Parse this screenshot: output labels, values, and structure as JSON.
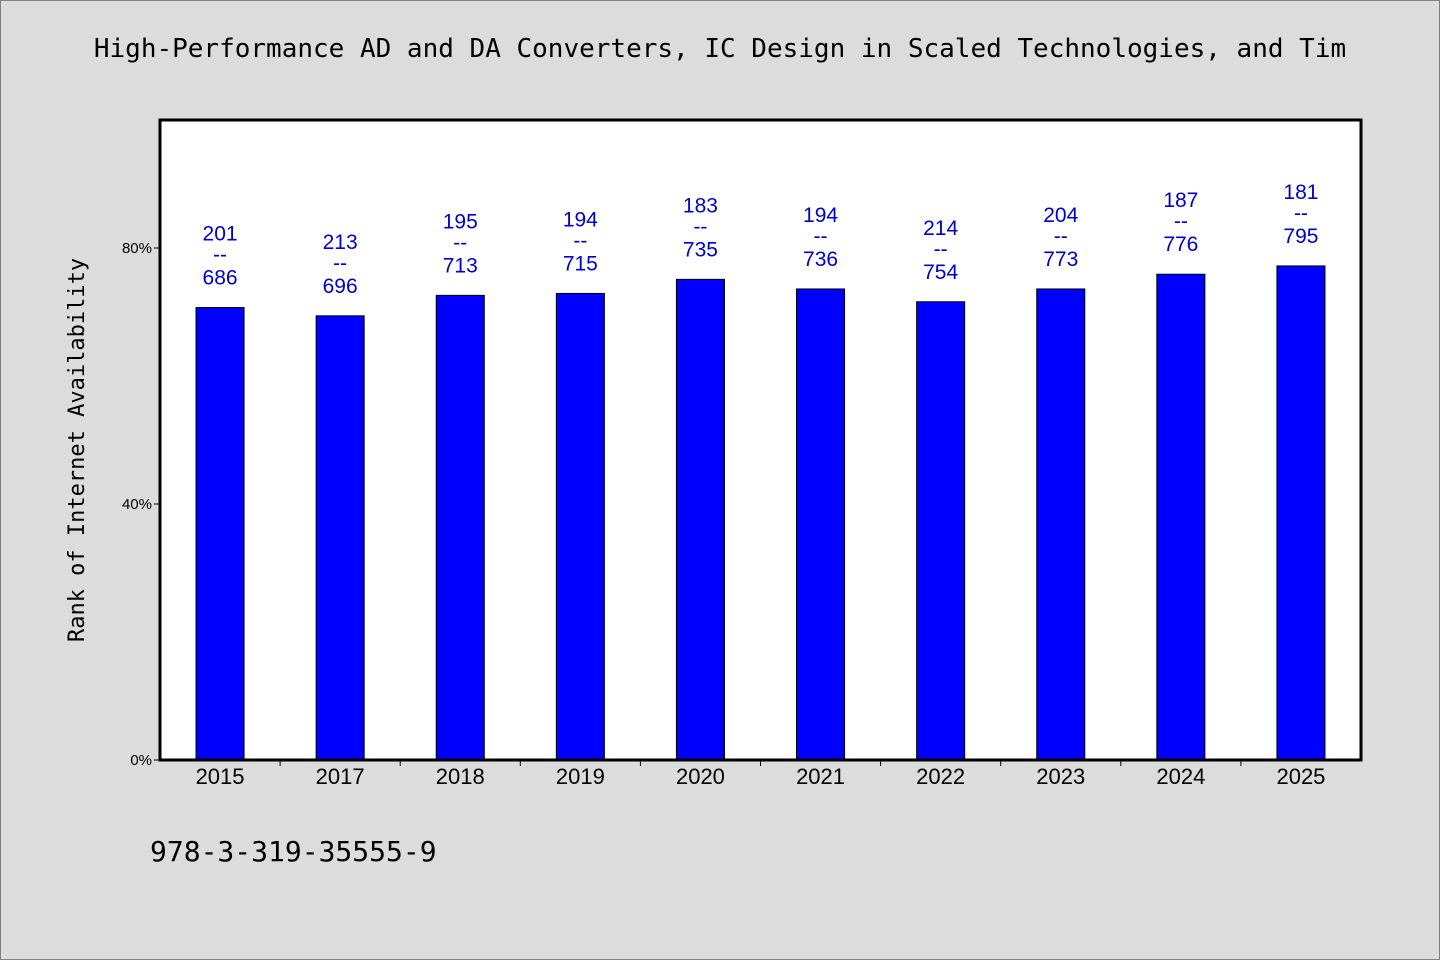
{
  "title": "High-Performance AD and DA Converters, IC Design in Scaled Technologies, and Tim",
  "isbn": "978-3-319-35555-9",
  "colors": {
    "bar": "#0000ff",
    "label": "#0000cc",
    "background": "#dcdcdc",
    "plot": "#ffffff"
  },
  "chart_data": {
    "type": "bar",
    "title": "High-Performance AD and DA Converters, IC Design in Scaled Technologies, and Tim",
    "xlabel": "",
    "ylabel": "Rank of Internet Availability",
    "categories": [
      "2015",
      "2017",
      "2018",
      "2019",
      "2020",
      "2021",
      "2022",
      "2023",
      "2024",
      "2025"
    ],
    "values": [
      70.7,
      69.4,
      72.6,
      72.9,
      75.1,
      73.6,
      71.6,
      73.6,
      75.9,
      77.2
    ],
    "value_unit": "%",
    "labels": [
      {
        "top": "201",
        "sep": "--",
        "bottom": "686"
      },
      {
        "top": "213",
        "sep": "--",
        "bottom": "696"
      },
      {
        "top": "195",
        "sep": "--",
        "bottom": "713"
      },
      {
        "top": "194",
        "sep": "--",
        "bottom": "715"
      },
      {
        "top": "183",
        "sep": "--",
        "bottom": "735"
      },
      {
        "top": "194",
        "sep": "--",
        "bottom": "736"
      },
      {
        "top": "214",
        "sep": "--",
        "bottom": "754"
      },
      {
        "top": "204",
        "sep": "--",
        "bottom": "773"
      },
      {
        "top": "187",
        "sep": "--",
        "bottom": "776"
      },
      {
        "top": "181",
        "sep": "--",
        "bottom": "795"
      }
    ],
    "yticks": [
      0,
      40,
      80
    ],
    "ytick_labels": [
      "0%",
      "40%",
      "80%"
    ],
    "ylim": [
      0,
      100
    ],
    "grid": false,
    "legend": "none"
  }
}
